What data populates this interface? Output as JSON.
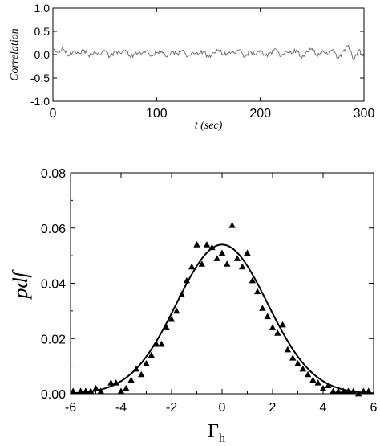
{
  "chart_data": [
    {
      "type": "line",
      "title": "",
      "xlabel": "t (sec)",
      "ylabel": "Correlation",
      "xlim": [
        0,
        300
      ],
      "ylim": [
        -1.0,
        1.0
      ],
      "x_ticks": [
        "0",
        "100",
        "200",
        "300"
      ],
      "y_ticks": [
        "1.0",
        "0.5",
        "0.0",
        "-0.5",
        "-1.0"
      ],
      "grid": false,
      "series": [
        {
          "description_note": "noisy signal fluctuating near zero",
          "color": "#666666",
          "x": [
            0,
            5,
            10,
            15,
            20,
            25,
            30,
            35,
            40,
            45,
            50,
            55,
            60,
            65,
            70,
            75,
            80,
            85,
            90,
            95,
            100,
            105,
            110,
            115,
            120,
            125,
            130,
            135,
            140,
            145,
            150,
            155,
            160,
            165,
            170,
            175,
            180,
            185,
            190,
            195,
            200,
            205,
            210,
            215,
            220,
            225,
            230,
            235,
            240,
            245,
            250,
            255,
            260,
            265,
            270,
            275,
            280,
            285,
            290,
            295,
            300
          ],
          "y": [
            0.1,
            0.05,
            0.12,
            -0.03,
            0.08,
            0.02,
            0.1,
            -0.05,
            0.06,
            0.0,
            0.09,
            -0.04,
            0.07,
            0.03,
            0.1,
            -0.06,
            0.05,
            0.01,
            0.08,
            -0.03,
            0.04,
            0.07,
            -0.05,
            0.06,
            0.02,
            0.09,
            -0.04,
            0.05,
            0.0,
            0.08,
            -0.06,
            0.04,
            0.1,
            -0.02,
            0.06,
            0.03,
            0.11,
            -0.05,
            0.07,
            0.0,
            0.09,
            -0.03,
            0.05,
            0.12,
            -0.04,
            0.08,
            0.02,
            0.1,
            -0.07,
            0.06,
            0.13,
            -0.05,
            0.09,
            0.0,
            0.11,
            -0.08,
            0.07,
            0.2,
            -0.12,
            0.1,
            -0.05
          ]
        }
      ]
    },
    {
      "type": "scatter",
      "title": "",
      "xlabel": "Γ",
      "xlabel_sub": "h",
      "ylabel": "pdf",
      "xlim": [
        -6,
        6
      ],
      "ylim": [
        0,
        0.08
      ],
      "x_ticks": [
        "-6",
        "-4",
        "-2",
        "0",
        "2",
        "4",
        "6"
      ],
      "y_ticks": [
        "0.08",
        "0.06",
        "0.04",
        "0.02",
        "0.00"
      ],
      "grid": false,
      "series": [
        {
          "marker": "triangle",
          "color": "#000000",
          "x": [
            -5.9,
            -5.6,
            -5.4,
            -5.2,
            -5.0,
            -4.8,
            -4.4,
            -4.2,
            -4.0,
            -3.8,
            -3.6,
            -3.4,
            -3.2,
            -3.0,
            -2.8,
            -2.6,
            -2.4,
            -2.2,
            -2.0,
            -1.8,
            -1.6,
            -1.4,
            -1.2,
            -1.0,
            -0.8,
            -0.6,
            -0.4,
            -0.2,
            0.0,
            0.2,
            0.4,
            0.6,
            0.8,
            1.0,
            1.2,
            1.4,
            1.6,
            1.8,
            2.0,
            2.2,
            2.4,
            2.6,
            2.8,
            3.0,
            3.2,
            3.4,
            3.6,
            3.8,
            4.0,
            4.2,
            4.4,
            4.6,
            4.8,
            5.0,
            5.2,
            5.4,
            5.6,
            5.8
          ],
          "y": [
            0.001,
            0.001,
            0.001,
            0.001,
            0.002,
            0.001,
            0.004,
            0.004,
            0.001,
            0.002,
            0.005,
            0.009,
            0.007,
            0.011,
            0.014,
            0.018,
            0.018,
            0.024,
            0.027,
            0.03,
            0.036,
            0.041,
            0.046,
            0.054,
            0.047,
            0.054,
            0.053,
            0.049,
            0.051,
            0.047,
            0.061,
            0.049,
            0.046,
            0.051,
            0.041,
            0.037,
            0.031,
            0.028,
            0.024,
            0.022,
            0.025,
            0.016,
            0.013,
            0.011,
            0.009,
            0.007,
            0.005,
            0.004,
            0.002,
            0.003,
            0.001,
            0.001,
            0.001,
            0.001,
            0.001,
            0.0,
            0.001,
            0.001
          ]
        },
        {
          "type": "line",
          "color": "#000000",
          "description_note": "gaussian fit",
          "mean": 0.0,
          "std": 1.8,
          "peak": 0.054
        }
      ]
    }
  ]
}
